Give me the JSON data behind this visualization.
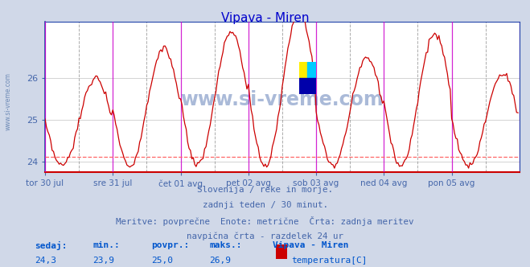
{
  "title": "Vipava - Miren",
  "title_color": "#0000cc",
  "bg_color": "#d0d8e8",
  "plot_bg_color": "#ffffff",
  "line_color": "#cc0000",
  "grid_color": "#cccccc",
  "tick_color": "#4466aa",
  "y_min": 23.75,
  "y_max": 27.35,
  "y_ticks": [
    24,
    25,
    26
  ],
  "avg_line_y": 24.12,
  "avg_line_color": "#ff6666",
  "vline_color_midnight": "#cc00cc",
  "vline_color_noon": "#888888",
  "x_labels": [
    "tor 30 jul",
    "sre 31 jul",
    "čet 01 avg",
    "pet 02 avg",
    "sob 03 avg",
    "ned 04 avg",
    "pon 05 avg"
  ],
  "bottom_text_1": "Slovenija / reke in morje.",
  "bottom_text_2": "zadnji teden / 30 minut.",
  "bottom_text_3": "Meritve: povprečne  Enote: metrične  Črta: zadnja meritev",
  "bottom_text_4": "navpična črta - razdelek 24 ur",
  "stat_sedaj": "24,3",
  "stat_min": "23,9",
  "stat_povpr": "25,0",
  "stat_maks": "26,9",
  "legend_label": "temperatura[C]",
  "legend_station": "Vipava - Miren",
  "watermark": "www.si-vreme.com",
  "watermark_color": "#4466aa",
  "logo_yellow": "#ffee00",
  "logo_cyan": "#00ccff",
  "logo_blue": "#0000aa",
  "label_color": "#0055cc",
  "n_days": 7,
  "points_per_day": 48
}
